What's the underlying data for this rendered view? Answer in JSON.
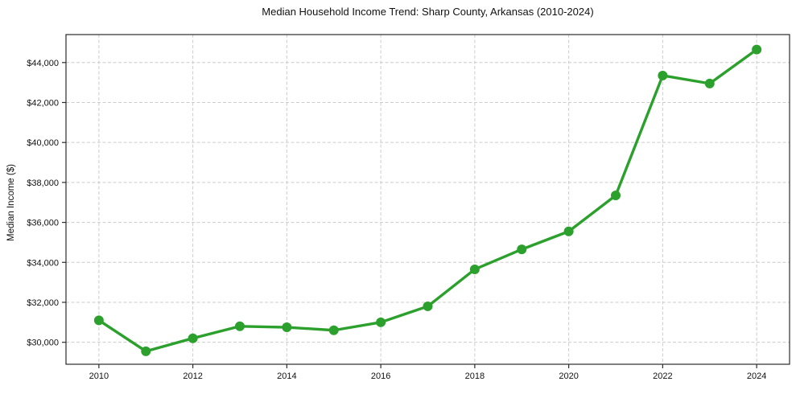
{
  "chart_data": {
    "type": "line",
    "title": "Median Household Income Trend: Sharp County, Arkansas (2010-2024)",
    "ylabel": "Median Income ($)",
    "xlabel": "",
    "series": [
      {
        "name": "Median household income",
        "x": [
          2010,
          2011,
          2012,
          2013,
          2014,
          2015,
          2016,
          2017,
          2018,
          2019,
          2020,
          2021,
          2022,
          2023,
          2024
        ],
        "values": [
          31100,
          29550,
          30200,
          30800,
          30750,
          30600,
          31000,
          31800,
          33650,
          34650,
          35550,
          37350,
          43350,
          42950,
          44650
        ]
      }
    ],
    "xlim": [
      2009.3,
      2024.7
    ],
    "ylim": [
      28900,
      45400
    ],
    "xticks": [
      2010,
      2012,
      2014,
      2016,
      2018,
      2020,
      2022,
      2024
    ],
    "xtick_labels": [
      "2010",
      "2012",
      "2014",
      "2016",
      "2018",
      "2020",
      "2022",
      "2024"
    ],
    "yticks": [
      30000,
      32000,
      34000,
      36000,
      38000,
      40000,
      42000,
      44000
    ],
    "ytick_labels": [
      "$30,000",
      "$32,000",
      "$34,000",
      "$36,000",
      "$38,000",
      "$40,000",
      "$42,000",
      "$44,000"
    ],
    "grid": true,
    "grid_style": "dashed",
    "legend_position": "none",
    "colors": {
      "line": "#2ca02c",
      "marker": "#2ca02c",
      "grid": "#cccccc",
      "spine": "#2b2b2b",
      "tick": "#2b2b2b",
      "text": "#111111",
      "background": "#ffffff"
    }
  }
}
